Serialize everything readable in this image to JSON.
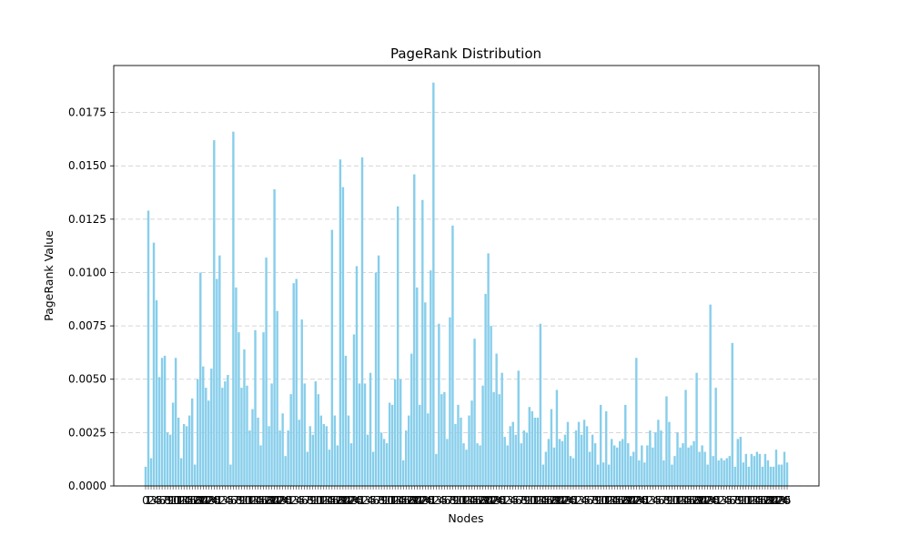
{
  "chart_data": {
    "type": "bar",
    "title": "PageRank Distribution",
    "xlabel": "Nodes",
    "ylabel": "PageRank Value",
    "ylim": [
      0,
      0.0197
    ],
    "yticks": [
      0.0,
      0.0025,
      0.005,
      0.0075,
      0.01,
      0.0125,
      0.015,
      0.0175
    ],
    "ytick_labels": [
      "0.0000",
      "0.0025",
      "0.0050",
      "0.0075",
      "0.0100",
      "0.0125",
      "0.0150",
      "0.0175"
    ],
    "grid": "y-dashed",
    "bar_color": "#87ceeb",
    "values": [
      0.0009,
      0.0129,
      0.0013,
      0.0114,
      0.0087,
      0.0051,
      0.006,
      0.0061,
      0.0025,
      0.0024,
      0.0039,
      0.006,
      0.0032,
      0.0013,
      0.0029,
      0.0028,
      0.0033,
      0.0041,
      0.001,
      0.005,
      0.01,
      0.0056,
      0.0046,
      0.004,
      0.0055,
      0.0162,
      0.0097,
      0.0108,
      0.0046,
      0.0049,
      0.0052,
      0.001,
      0.0166,
      0.0093,
      0.0072,
      0.0046,
      0.0064,
      0.0047,
      0.0026,
      0.0036,
      0.0073,
      0.0032,
      0.0019,
      0.0072,
      0.0107,
      0.0028,
      0.0048,
      0.0139,
      0.0082,
      0.0026,
      0.0034,
      0.0014,
      0.0026,
      0.0043,
      0.0095,
      0.0097,
      0.0031,
      0.0078,
      0.0048,
      0.0016,
      0.0028,
      0.0024,
      0.0049,
      0.0043,
      0.0033,
      0.0029,
      0.0028,
      0.0017,
      0.012,
      0.0033,
      0.0019,
      0.0153,
      0.014,
      0.0061,
      0.0033,
      0.002,
      0.0071,
      0.0103,
      0.0048,
      0.0154,
      0.0048,
      0.0024,
      0.0053,
      0.0016,
      0.01,
      0.0108,
      0.0025,
      0.0022,
      0.002,
      0.0039,
      0.0038,
      0.005,
      0.0131,
      0.005,
      0.0012,
      0.0026,
      0.0033,
      0.0062,
      0.0146,
      0.0093,
      0.0038,
      0.0134,
      0.0086,
      0.0034,
      0.0101,
      0.0189,
      0.0015,
      0.0076,
      0.0043,
      0.0044,
      0.0022,
      0.0079,
      0.0122,
      0.0029,
      0.0038,
      0.0032,
      0.002,
      0.0017,
      0.0033,
      0.004,
      0.0069,
      0.002,
      0.0019,
      0.0047,
      0.009,
      0.0109,
      0.0075,
      0.0044,
      0.0062,
      0.0043,
      0.0053,
      0.0023,
      0.0019,
      0.0028,
      0.003,
      0.0024,
      0.0054,
      0.002,
      0.0026,
      0.0025,
      0.0037,
      0.0035,
      0.0032,
      0.0032,
      0.0076,
      0.001,
      0.0016,
      0.0022,
      0.0036,
      0.0018,
      0.0045,
      0.0022,
      0.0021,
      0.0024,
      0.003,
      0.0014,
      0.0013,
      0.0026,
      0.003,
      0.0024,
      0.0031,
      0.0028,
      0.0016,
      0.0024,
      0.002,
      0.001,
      0.0038,
      0.0011,
      0.0035,
      0.001,
      0.0022,
      0.0019,
      0.0018,
      0.0021,
      0.0022,
      0.0038,
      0.002,
      0.0014,
      0.0016,
      0.006,
      0.0012,
      0.0019,
      0.0011,
      0.0019,
      0.0026,
      0.0018,
      0.0025,
      0.0031,
      0.0026,
      0.0012,
      0.0042,
      0.003,
      0.001,
      0.0014,
      0.0025,
      0.0018,
      0.002,
      0.0045,
      0.0018,
      0.0019,
      0.0021,
      0.0053,
      0.0016,
      0.0019,
      0.0016,
      0.001,
      0.0085,
      0.0014,
      0.0046,
      0.0012,
      0.0013,
      0.0012,
      0.0013,
      0.0014,
      0.0067,
      0.0009,
      0.0022,
      0.0023,
      0.0011,
      0.0015,
      0.0009,
      0.0015,
      0.0014,
      0.0016,
      0.0015,
      0.0009,
      0.0015,
      0.0012,
      0.0009,
      0.0009,
      0.0017,
      0.001,
      0.001,
      0.0016,
      0.0011
    ],
    "xtick_labels_visible": [
      "0",
      "1",
      "2",
      "3",
      "4",
      "5",
      "6",
      "7",
      "8",
      "9",
      "10",
      "11",
      "12",
      "13",
      "14",
      "15",
      "16",
      "17",
      "18",
      "19",
      "20",
      "21",
      "22",
      "23",
      "24",
      "25"
    ]
  }
}
